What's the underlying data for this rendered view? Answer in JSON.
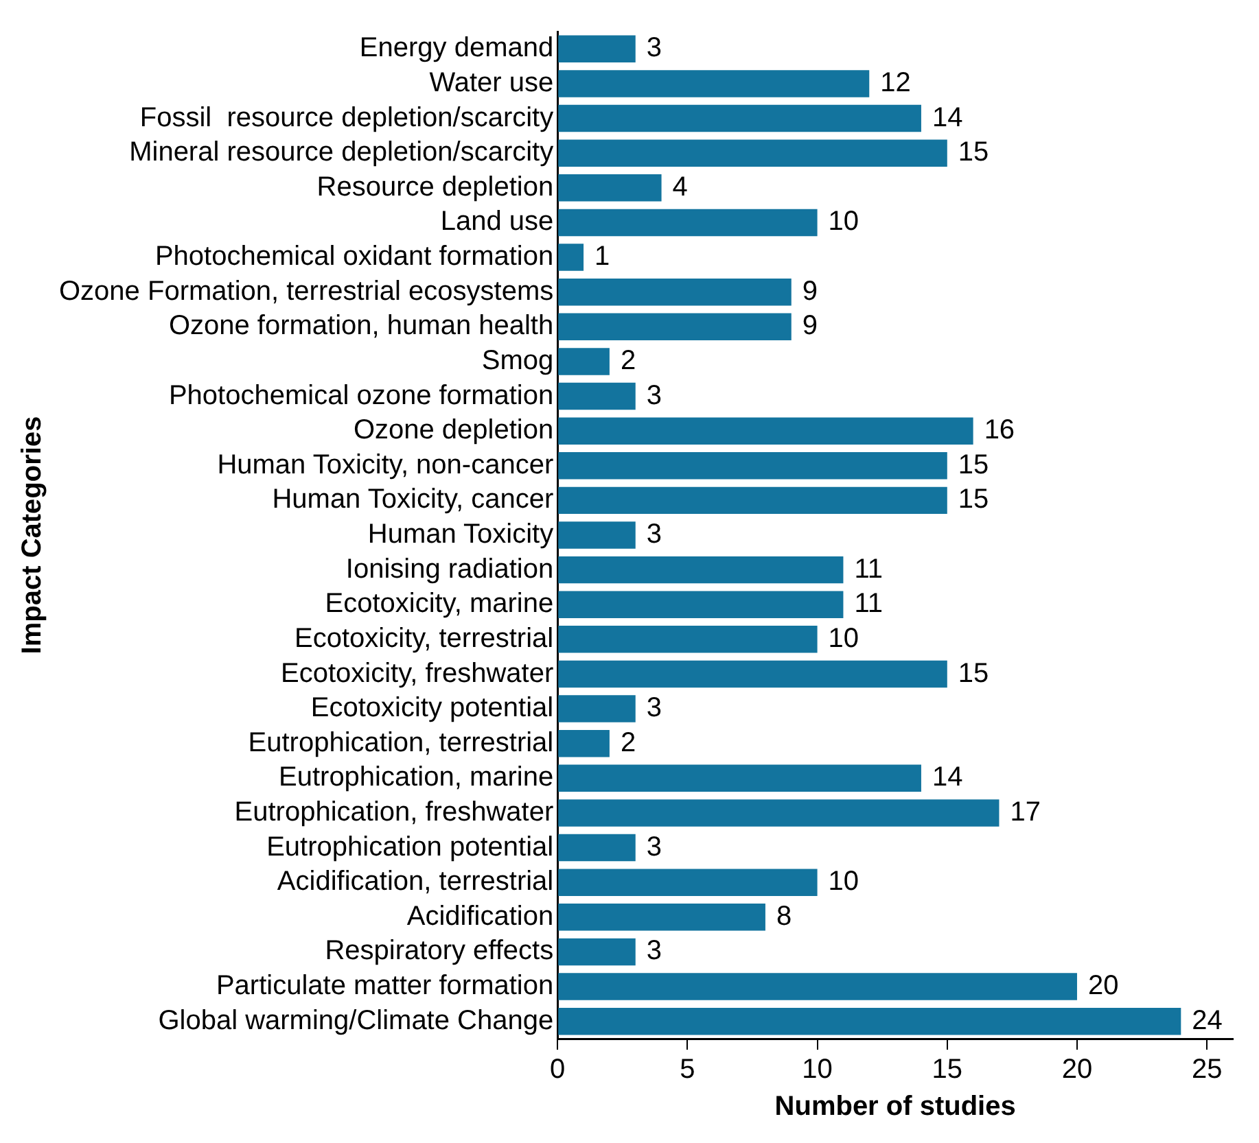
{
  "chart_data": {
    "type": "bar",
    "orientation": "horizontal",
    "xlabel": "Number of studies",
    "ylabel": "Impact Categories",
    "categories": [
      "Energy demand",
      "Water use",
      "Fossil  resource depletion/scarcity",
      "Mineral resource depletion/scarcity",
      "Resource depletion",
      "Land use",
      "Photochemical oxidant formation",
      "Ozone Formation, terrestrial ecosystems",
      "Ozone formation, human health",
      "Smog",
      "Photochemical ozone formation",
      "Ozone depletion",
      "Human Toxicity, non-cancer",
      "Human Toxicity, cancer",
      "Human Toxicity",
      "Ionising radiation",
      "Ecotoxicity, marine",
      "Ecotoxicity, terrestrial",
      "Ecotoxicity, freshwater",
      "Ecotoxicity potential",
      "Eutrophication, terrestrial",
      "Eutrophication, marine",
      "Eutrophication, freshwater",
      "Eutrophication potential",
      "Acidification, terrestrial",
      "Acidification",
      "Respiratory effects",
      "Particulate matter formation",
      "Global warming/Climate Change"
    ],
    "values": [
      3,
      12,
      14,
      15,
      4,
      10,
      1,
      9,
      9,
      2,
      3,
      16,
      15,
      15,
      3,
      11,
      11,
      10,
      15,
      3,
      2,
      14,
      17,
      3,
      10,
      8,
      3,
      20,
      24
    ],
    "color": "#13749e",
    "xlim": [
      0,
      26
    ],
    "xticks": [
      0,
      5,
      10,
      15,
      20,
      25
    ],
    "grid": false,
    "legend": false,
    "data_labels": true
  }
}
